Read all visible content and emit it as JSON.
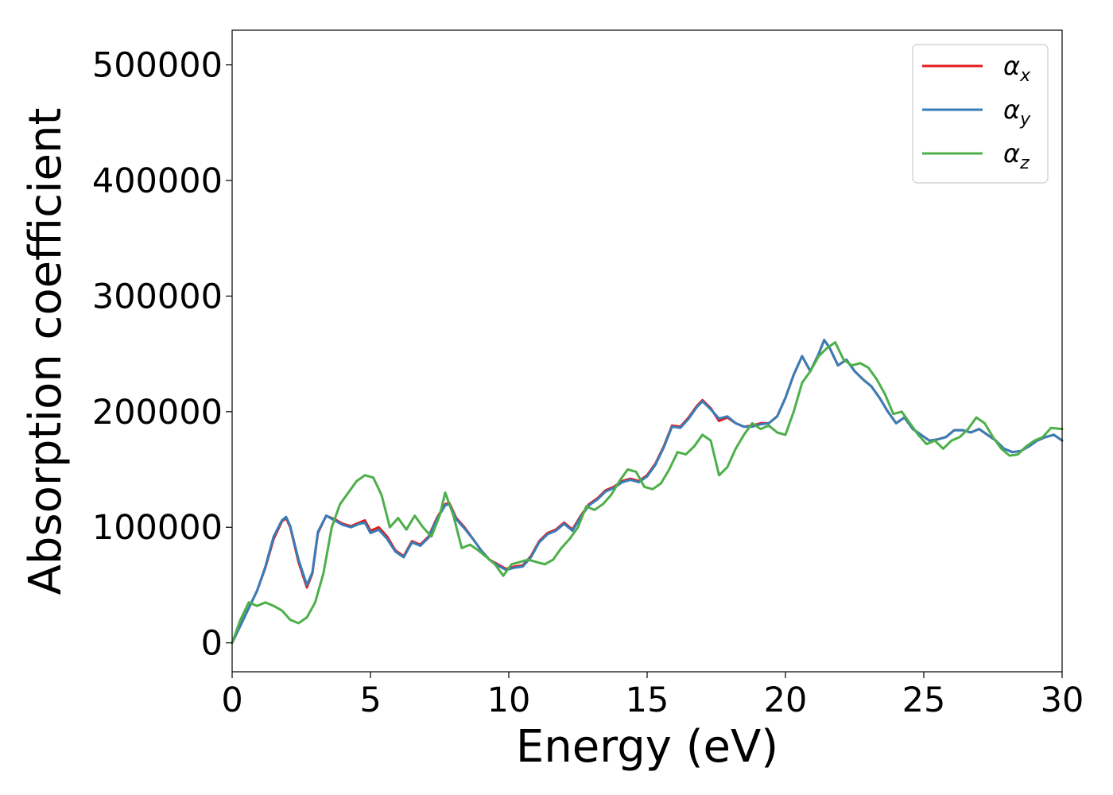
{
  "chart_data": {
    "type": "line",
    "title": "",
    "xlabel": "Energy (eV)",
    "ylabel": "Absorption coefficient",
    "xlim": [
      0,
      30
    ],
    "ylim": [
      -25000,
      530000
    ],
    "xticks": [
      0,
      5,
      10,
      15,
      20,
      25,
      30
    ],
    "yticks": [
      0,
      100000,
      200000,
      300000,
      400000,
      500000
    ],
    "xtick_labels": [
      "0",
      "5",
      "10",
      "15",
      "20",
      "25",
      "30"
    ],
    "ytick_labels": [
      "0",
      "100000",
      "200000",
      "300000",
      "400000",
      "500000"
    ],
    "grid": false,
    "legend_position": "top-right",
    "series": [
      {
        "name": "α_x",
        "legend_main": "α",
        "legend_sub": "x",
        "color": "#e41a1c",
        "x": [
          0,
          0.3,
          0.6,
          0.9,
          1.2,
          1.5,
          1.8,
          1.95,
          2.1,
          2.4,
          2.7,
          2.9,
          3.1,
          3.4,
          3.7,
          4.0,
          4.3,
          4.6,
          4.8,
          5.0,
          5.3,
          5.6,
          5.9,
          6.2,
          6.5,
          6.8,
          7.1,
          7.4,
          7.7,
          7.85,
          8.1,
          8.4,
          8.7,
          9.0,
          9.3,
          9.6,
          9.9,
          10.2,
          10.5,
          10.8,
          11.1,
          11.4,
          11.7,
          12.0,
          12.3,
          12.6,
          12.9,
          13.2,
          13.5,
          13.8,
          14.1,
          14.4,
          14.7,
          15.0,
          15.3,
          15.6,
          15.9,
          16.2,
          16.5,
          16.8,
          17.0,
          17.3,
          17.6,
          17.9,
          18.2,
          18.5,
          18.8,
          19.1,
          19.4,
          19.7,
          20.0,
          20.3,
          20.6,
          20.9,
          21.2,
          21.4,
          21.6,
          21.9,
          22.2,
          22.5,
          22.8,
          23.1,
          23.4,
          23.7,
          24.0,
          24.3,
          24.6,
          24.9,
          25.2,
          25.5,
          25.8,
          26.1,
          26.4,
          26.7,
          27.0,
          27.3,
          27.6,
          27.9,
          28.2,
          28.5,
          28.8,
          29.1,
          29.4,
          29.7,
          30.0
        ],
        "y": [
          0,
          15000,
          30000,
          45000,
          65000,
          90000,
          105000,
          108000,
          100000,
          70000,
          48000,
          60000,
          95000,
          110000,
          107000,
          103000,
          101000,
          104000,
          106000,
          97000,
          100000,
          92000,
          80000,
          75000,
          88000,
          85000,
          92000,
          108000,
          120000,
          121000,
          108000,
          100000,
          90000,
          80000,
          72000,
          68000,
          64000,
          66000,
          67000,
          75000,
          88000,
          95000,
          98000,
          104000,
          98000,
          110000,
          120000,
          125000,
          132000,
          135000,
          140000,
          142000,
          140000,
          145000,
          155000,
          170000,
          188000,
          187000,
          195000,
          205000,
          210000,
          203000,
          192000,
          195000,
          190000,
          187000,
          188000,
          190000,
          190000,
          196000,
          212000,
          232000,
          248000,
          235000,
          250000,
          262000,
          255000,
          240000,
          245000,
          235000,
          228000,
          222000,
          212000,
          200000,
          190000,
          195000,
          185000,
          180000,
          175000,
          176000,
          178000,
          184000,
          184000,
          182000,
          185000,
          180000,
          175000,
          168000,
          165000,
          166000,
          170000,
          175000,
          178000,
          180000,
          175000
        ]
      },
      {
        "name": "α_y",
        "legend_main": "α",
        "legend_sub": "y",
        "color": "#377eb8",
        "x": [
          0,
          0.3,
          0.6,
          0.9,
          1.2,
          1.5,
          1.8,
          1.95,
          2.1,
          2.4,
          2.7,
          2.9,
          3.1,
          3.4,
          3.7,
          4.0,
          4.3,
          4.6,
          4.8,
          5.0,
          5.3,
          5.6,
          5.9,
          6.2,
          6.5,
          6.8,
          7.1,
          7.4,
          7.7,
          7.85,
          8.1,
          8.4,
          8.7,
          9.0,
          9.3,
          9.6,
          9.9,
          10.2,
          10.5,
          10.8,
          11.1,
          11.4,
          11.7,
          12.0,
          12.3,
          12.6,
          12.9,
          13.2,
          13.5,
          13.8,
          14.1,
          14.4,
          14.7,
          15.0,
          15.3,
          15.6,
          15.9,
          16.2,
          16.5,
          16.8,
          17.0,
          17.3,
          17.6,
          17.9,
          18.2,
          18.5,
          18.8,
          19.1,
          19.4,
          19.7,
          20.0,
          20.3,
          20.6,
          20.9,
          21.2,
          21.4,
          21.6,
          21.9,
          22.2,
          22.5,
          22.8,
          23.1,
          23.4,
          23.7,
          24.0,
          24.3,
          24.6,
          24.9,
          25.2,
          25.5,
          25.8,
          26.1,
          26.4,
          26.7,
          27.0,
          27.3,
          27.6,
          27.9,
          28.2,
          28.5,
          28.8,
          29.1,
          29.4,
          29.7,
          30.0
        ],
        "y": [
          0,
          15000,
          30000,
          45000,
          66000,
          92000,
          106000,
          109000,
          101000,
          72000,
          50000,
          61000,
          96000,
          110000,
          106000,
          102000,
          100000,
          103000,
          104000,
          95000,
          98000,
          90000,
          79000,
          74000,
          87000,
          84000,
          91000,
          107000,
          119000,
          120000,
          107000,
          99000,
          90000,
          80000,
          72000,
          67000,
          63000,
          65000,
          66000,
          74000,
          87000,
          94000,
          97000,
          103000,
          97000,
          109000,
          119000,
          124000,
          131000,
          134000,
          139000,
          141000,
          139000,
          144000,
          154000,
          169000,
          187000,
          186000,
          194000,
          204000,
          209000,
          202000,
          194000,
          196000,
          190000,
          187000,
          187000,
          189000,
          190000,
          196000,
          212000,
          232000,
          248000,
          235000,
          250000,
          262000,
          255000,
          240000,
          245000,
          235000,
          228000,
          222000,
          212000,
          200000,
          190000,
          195000,
          185000,
          180000,
          175000,
          176000,
          178000,
          184000,
          184000,
          182000,
          185000,
          180000,
          175000,
          168000,
          165000,
          166000,
          170000,
          175000,
          178000,
          180000,
          175000
        ]
      },
      {
        "name": "α_z",
        "legend_main": "α",
        "legend_sub": "z",
        "color": "#4daf4a",
        "x": [
          0,
          0.3,
          0.6,
          0.9,
          1.2,
          1.5,
          1.8,
          2.1,
          2.4,
          2.7,
          3.0,
          3.3,
          3.6,
          3.9,
          4.2,
          4.5,
          4.8,
          5.1,
          5.4,
          5.7,
          6.0,
          6.3,
          6.6,
          6.9,
          7.2,
          7.5,
          7.7,
          8.0,
          8.3,
          8.6,
          8.9,
          9.2,
          9.5,
          9.8,
          10.1,
          10.4,
          10.7,
          11.0,
          11.3,
          11.6,
          11.9,
          12.2,
          12.5,
          12.8,
          13.1,
          13.4,
          13.7,
          14.0,
          14.3,
          14.6,
          14.9,
          15.2,
          15.5,
          15.8,
          16.1,
          16.4,
          16.7,
          17.0,
          17.3,
          17.6,
          17.9,
          18.2,
          18.5,
          18.8,
          19.1,
          19.4,
          19.7,
          20.0,
          20.3,
          20.6,
          20.9,
          21.2,
          21.5,
          21.8,
          22.1,
          22.4,
          22.7,
          23.0,
          23.3,
          23.6,
          23.9,
          24.2,
          24.5,
          24.8,
          25.1,
          25.4,
          25.7,
          26.0,
          26.3,
          26.6,
          26.9,
          27.2,
          27.5,
          27.8,
          28.1,
          28.4,
          28.7,
          29.0,
          29.3,
          29.6,
          30.0
        ],
        "y": [
          0,
          20000,
          35000,
          32000,
          35000,
          32000,
          28000,
          20000,
          17000,
          22000,
          35000,
          60000,
          100000,
          120000,
          130000,
          140000,
          145000,
          143000,
          128000,
          100000,
          108000,
          98000,
          110000,
          100000,
          92000,
          110000,
          130000,
          110000,
          82000,
          85000,
          80000,
          74000,
          68000,
          58000,
          68000,
          70000,
          72000,
          70000,
          68000,
          72000,
          82000,
          90000,
          100000,
          118000,
          115000,
          120000,
          128000,
          140000,
          150000,
          148000,
          135000,
          133000,
          138000,
          150000,
          165000,
          163000,
          170000,
          180000,
          175000,
          145000,
          152000,
          168000,
          180000,
          190000,
          185000,
          188000,
          182000,
          180000,
          200000,
          225000,
          235000,
          248000,
          255000,
          260000,
          245000,
          240000,
          242000,
          238000,
          228000,
          215000,
          198000,
          200000,
          190000,
          180000,
          172000,
          175000,
          168000,
          175000,
          178000,
          185000,
          195000,
          190000,
          178000,
          168000,
          162000,
          163000,
          170000,
          175000,
          178000,
          186000,
          185000
        ]
      }
    ]
  }
}
